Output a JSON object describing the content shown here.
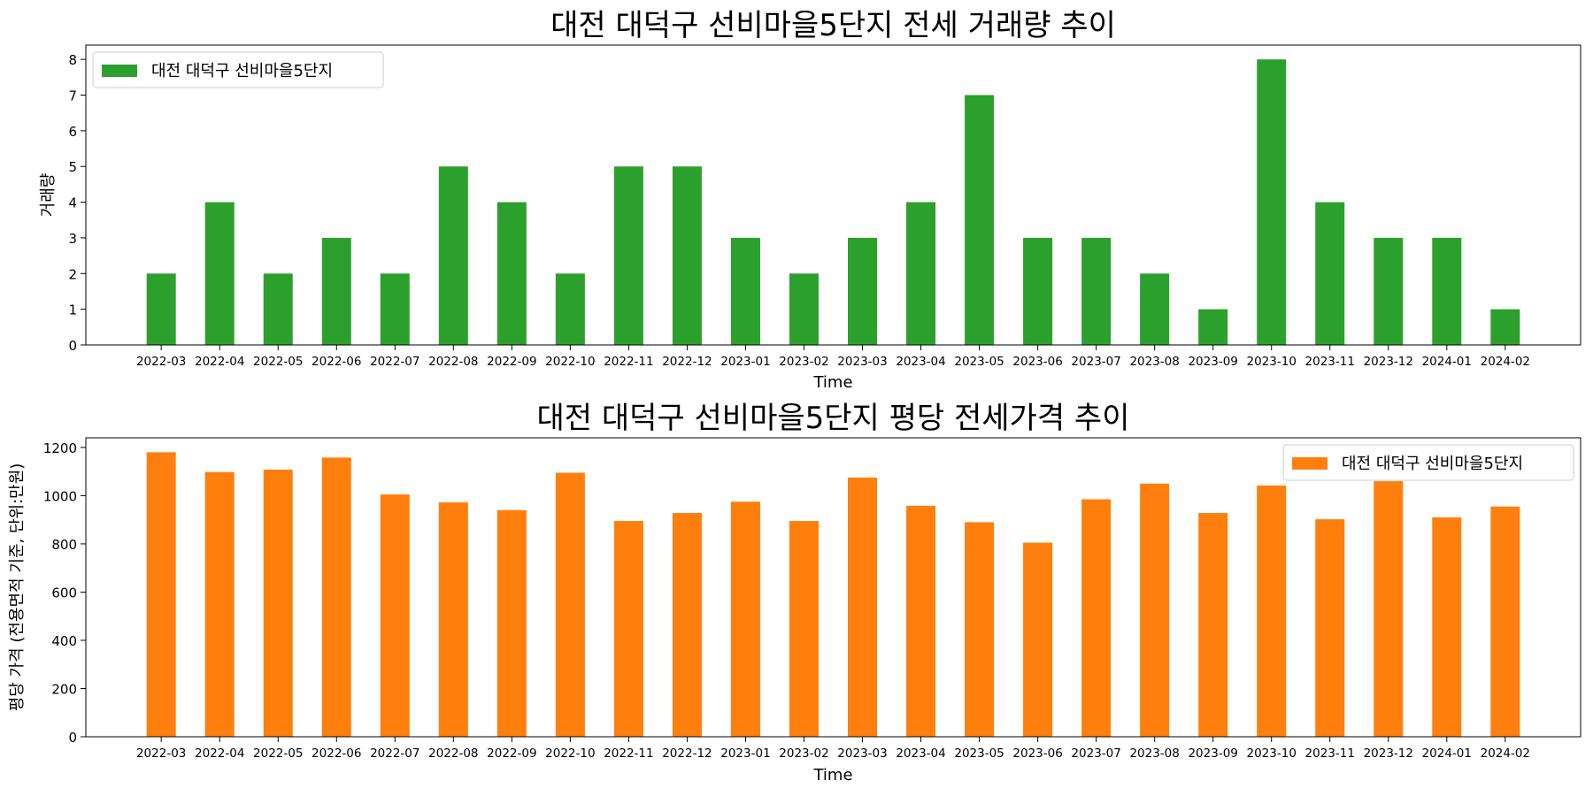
{
  "chart_data": [
    {
      "type": "bar",
      "title": "대전 대덕구 선비마을5단지 전세 거래량 추이",
      "xlabel": "Time",
      "ylabel": "거래량",
      "ylim": [
        0,
        8.4
      ],
      "yticks": [
        0,
        1,
        2,
        3,
        4,
        5,
        6,
        7,
        8
      ],
      "legend_placement": "top-left",
      "grid": false,
      "categories": [
        "2022-03",
        "2022-04",
        "2022-05",
        "2022-06",
        "2022-07",
        "2022-08",
        "2022-09",
        "2022-10",
        "2022-11",
        "2022-12",
        "2023-01",
        "2023-02",
        "2023-03",
        "2023-04",
        "2023-05",
        "2023-06",
        "2023-07",
        "2023-08",
        "2023-09",
        "2023-10",
        "2023-11",
        "2023-12",
        "2024-01",
        "2024-02"
      ],
      "series": [
        {
          "name": "대전 대덕구 선비마을5단지",
          "color": "#2ca02c",
          "values": [
            2,
            4,
            2,
            3,
            2,
            5,
            4,
            2,
            5,
            5,
            3,
            2,
            3,
            4,
            7,
            3,
            3,
            2,
            1,
            8,
            4,
            3,
            3,
            1
          ]
        }
      ]
    },
    {
      "type": "bar",
      "title": "대전 대덕구 선비마을5단지 평당 전세가격 추이",
      "xlabel": "Time",
      "ylabel": "평당 가격 (전용면적 기준, 단위:만원)",
      "ylim": [
        0,
        1240
      ],
      "yticks": [
        0,
        200,
        400,
        600,
        800,
        1000,
        1200
      ],
      "legend_placement": "top-right",
      "grid": false,
      "categories": [
        "2022-03",
        "2022-04",
        "2022-05",
        "2022-06",
        "2022-07",
        "2022-08",
        "2022-09",
        "2022-10",
        "2022-11",
        "2022-12",
        "2023-01",
        "2023-02",
        "2023-03",
        "2023-04",
        "2023-05",
        "2023-06",
        "2023-07",
        "2023-08",
        "2023-09",
        "2023-10",
        "2023-11",
        "2023-12",
        "2024-01",
        "2024-02"
      ],
      "series": [
        {
          "name": "대전 대덕구 선비마을5단지",
          "color": "#ff7f0e",
          "values": [
            1180,
            1098,
            1108,
            1158,
            1005,
            972,
            940,
            1095,
            895,
            928,
            975,
            895,
            1075,
            958,
            890,
            805,
            985,
            1050,
            928,
            1042,
            902,
            1060,
            910,
            955
          ]
        }
      ]
    }
  ]
}
